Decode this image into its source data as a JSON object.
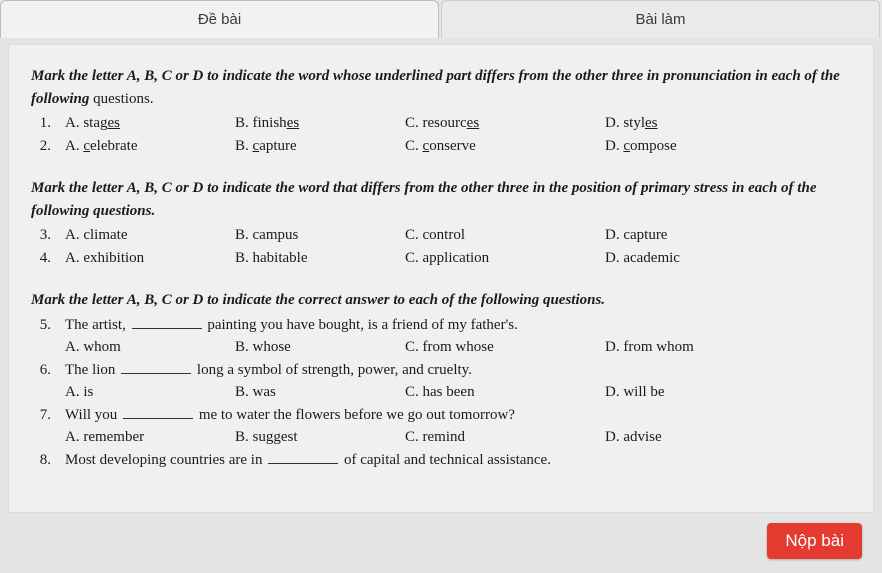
{
  "tabs": {
    "left": "Đề bài",
    "right": "Bài làm"
  },
  "sections": [
    {
      "instruction_pre": "Mark the letter A, B, C or D to indicate the word whose underlined part differs from the other three in pronunciation in each of the following",
      "instruction_post": "questions.",
      "questions": [
        {
          "num": "1.",
          "opts": [
            {
              "label": "A.",
              "pre": "stag",
              "u": "es",
              "post": ""
            },
            {
              "label": "B.",
              "pre": "finish",
              "u": "es",
              "post": ""
            },
            {
              "label": "C.",
              "pre": "resourc",
              "u": "es",
              "post": ""
            },
            {
              "label": "D.",
              "pre": "styl",
              "u": "es",
              "post": ""
            }
          ]
        },
        {
          "num": "2.",
          "opts": [
            {
              "label": "A.",
              "pre": "",
              "u": "c",
              "post": "elebrate"
            },
            {
              "label": "B.",
              "pre": "",
              "u": "c",
              "post": "apture"
            },
            {
              "label": "C.",
              "pre": "",
              "u": "c",
              "post": "onserve"
            },
            {
              "label": "D.",
              "pre": "",
              "u": "c",
              "post": "ompose"
            }
          ]
        }
      ]
    },
    {
      "instruction_pre": "Mark the letter A, B, C or D to indicate the word that differs from the other three in the position of primary stress in each of the following questions.",
      "instruction_post": "",
      "questions": [
        {
          "num": "3.",
          "opts": [
            {
              "label": "A.",
              "text": "climate"
            },
            {
              "label": "B.",
              "text": "campus"
            },
            {
              "label": "C.",
              "text": "control"
            },
            {
              "label": "D.",
              "text": "capture"
            }
          ]
        },
        {
          "num": "4.",
          "opts": [
            {
              "label": "A.",
              "text": "exhibition"
            },
            {
              "label": "B.",
              "text": "habitable"
            },
            {
              "label": "C.",
              "text": "application"
            },
            {
              "label": "D.",
              "text": "academic"
            }
          ]
        }
      ]
    },
    {
      "instruction_pre": "Mark the letter A, B, C or D to indicate the correct answer to each of the following questions.",
      "instruction_post": "",
      "questions": [
        {
          "num": "5.",
          "stem_pre": "The artist, ",
          "stem_post": " painting you have bought, is a friend of my father's.",
          "opts": [
            {
              "label": "A.",
              "text": "whom"
            },
            {
              "label": "B.",
              "text": "whose"
            },
            {
              "label": "C.",
              "text": "from whose"
            },
            {
              "label": "D.",
              "text": "from whom"
            }
          ]
        },
        {
          "num": "6.",
          "stem_pre": "The lion ",
          "stem_post": " long a symbol of strength, power, and cruelty.",
          "opts": [
            {
              "label": "A.",
              "text": "is"
            },
            {
              "label": "B.",
              "text": "was"
            },
            {
              "label": "C.",
              "text": "has been"
            },
            {
              "label": "D.",
              "text": "will be"
            }
          ]
        },
        {
          "num": "7.",
          "stem_pre": "Will you ",
          "stem_post": " me to water the flowers before we go out tomorrow?",
          "opts": [
            {
              "label": "A.",
              "text": "remember"
            },
            {
              "label": "B.",
              "text": "suggest"
            },
            {
              "label": "C.",
              "text": "remind"
            },
            {
              "label": "D.",
              "text": "advise"
            }
          ]
        },
        {
          "num": "8.",
          "stem_pre": "Most developing countries are in ",
          "stem_post": " of capital and technical assistance.",
          "opts": []
        }
      ]
    }
  ],
  "submit_label": "Nộp bài",
  "colors": {
    "page_bg": "#d8d8d8",
    "sheet_bg": "#f0f0ee",
    "submit_bg": "#e33b2f",
    "submit_fg": "#ffffff"
  }
}
